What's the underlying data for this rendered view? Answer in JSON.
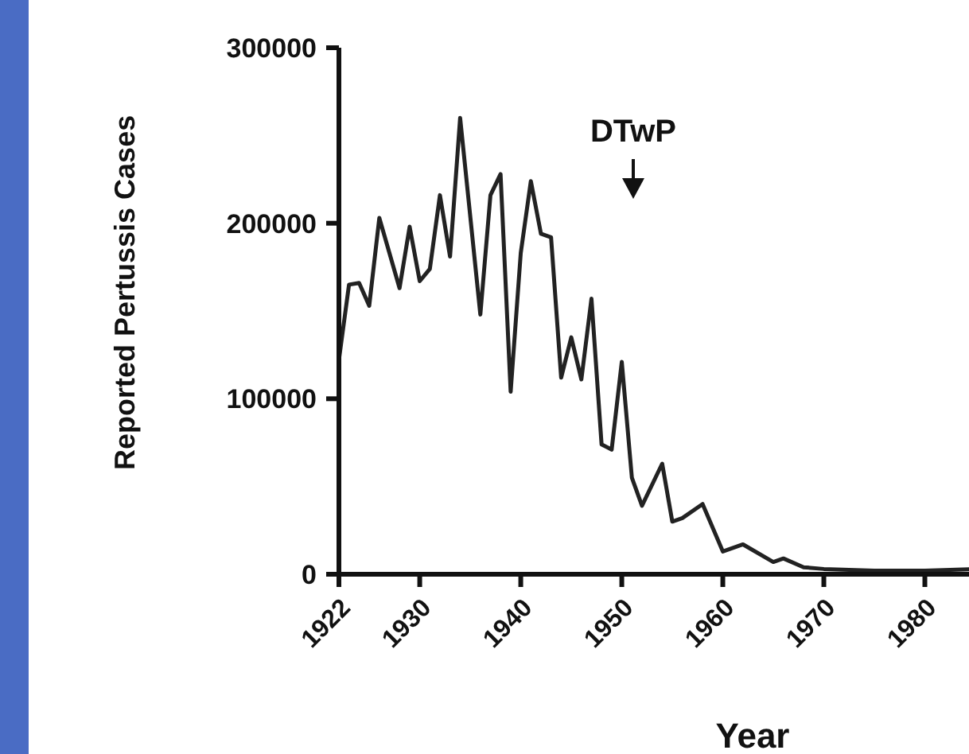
{
  "chart_data": {
    "type": "line",
    "xlabel": "Year",
    "ylabel": "Reported Pertussis Cases",
    "x": [
      1922,
      1923,
      1924,
      1925,
      1926,
      1928,
      1929,
      1930,
      1931,
      1932,
      1933,
      1934,
      1936,
      1937,
      1938,
      1939,
      1940,
      1941,
      1942,
      1943,
      1944,
      1945,
      1946,
      1947,
      1948,
      1949,
      1950,
      1951,
      1952,
      1954,
      1955,
      1956,
      1958,
      1960,
      1962,
      1965,
      1966,
      1968,
      1970,
      1975,
      1980,
      1985
    ],
    "series": [
      {
        "color": "#222222",
        "values": [
          122000,
          165000,
          166000,
          153000,
          203000,
          163000,
          198000,
          167000,
          174000,
          216000,
          181000,
          260000,
          148000,
          216000,
          228000,
          104000,
          183000,
          224000,
          194000,
          192000,
          112000,
          135000,
          111000,
          157000,
          74000,
          71000,
          121000,
          55000,
          39000,
          63000,
          30000,
          32000,
          40000,
          13000,
          17000,
          7000,
          9000,
          4000,
          3000,
          2000,
          2000,
          3000
        ]
      }
    ],
    "xlim": [
      1922,
      1985
    ],
    "xticks": [
      1922,
      1930,
      1940,
      1950,
      1960,
      1970,
      1980
    ],
    "ylim": [
      0,
      300000
    ],
    "yticks": [
      0,
      100000,
      200000,
      300000
    ],
    "marker": "none",
    "line_style": "solid",
    "annotations": [
      "DTwP"
    ]
  }
}
